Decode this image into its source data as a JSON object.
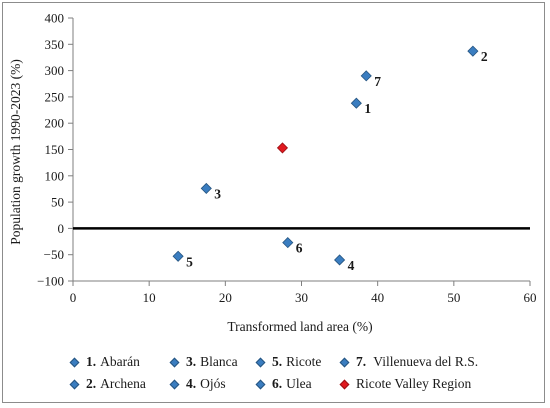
{
  "chart_data": {
    "type": "scatter",
    "xlabel": "Transformed land area (%)",
    "ylabel": "Population growth 1990-2023 (%)",
    "xlim": [
      0,
      60
    ],
    "ylim": [
      -100,
      400
    ],
    "xticks": [
      "0",
      "10",
      "20",
      "30",
      "40",
      "50",
      "60"
    ],
    "yticks": [
      "400",
      "350",
      "300",
      "250",
      "200",
      "150",
      "100",
      "50",
      "0",
      "−50",
      "−100"
    ],
    "grid": false,
    "legend_position": "bottom",
    "points": [
      {
        "label": "1",
        "x": 37.2,
        "y": 238,
        "color": "#3a7dc0"
      },
      {
        "label": "2",
        "x": 52.5,
        "y": 337,
        "color": "#3a7dc0"
      },
      {
        "label": "3",
        "x": 17.5,
        "y": 76,
        "color": "#3a7dc0"
      },
      {
        "label": "4",
        "x": 35.0,
        "y": -60,
        "color": "#3a7dc0"
      },
      {
        "label": "5",
        "x": 13.8,
        "y": -53,
        "color": "#3a7dc0"
      },
      {
        "label": "6",
        "x": 28.2,
        "y": -27,
        "color": "#3a7dc0"
      },
      {
        "label": "7",
        "x": 38.5,
        "y": 290,
        "color": "#3a7dc0"
      },
      {
        "label": "",
        "x": 27.5,
        "y": 153,
        "color": "#e0191f"
      }
    ],
    "legend": [
      {
        "num": "1.",
        "name": "Abarán",
        "color": "#3a7dc0"
      },
      {
        "num": "3.",
        "name": "Blanca",
        "color": "#3a7dc0"
      },
      {
        "num": "5.",
        "name": "Ricote",
        "color": "#3a7dc0"
      },
      {
        "num": "7.",
        "name": " Villenueva del R.S.",
        "color": "#3a7dc0"
      },
      {
        "num": "2.",
        "name": "Archena",
        "color": "#3a7dc0"
      },
      {
        "num": "4.",
        "name": "Ojós",
        "color": "#3a7dc0"
      },
      {
        "num": "6.",
        "name": "Ulea",
        "color": "#3a7dc0"
      },
      {
        "num": "",
        "name": "Ricote Valley Region",
        "color": "#e0191f"
      }
    ]
  }
}
